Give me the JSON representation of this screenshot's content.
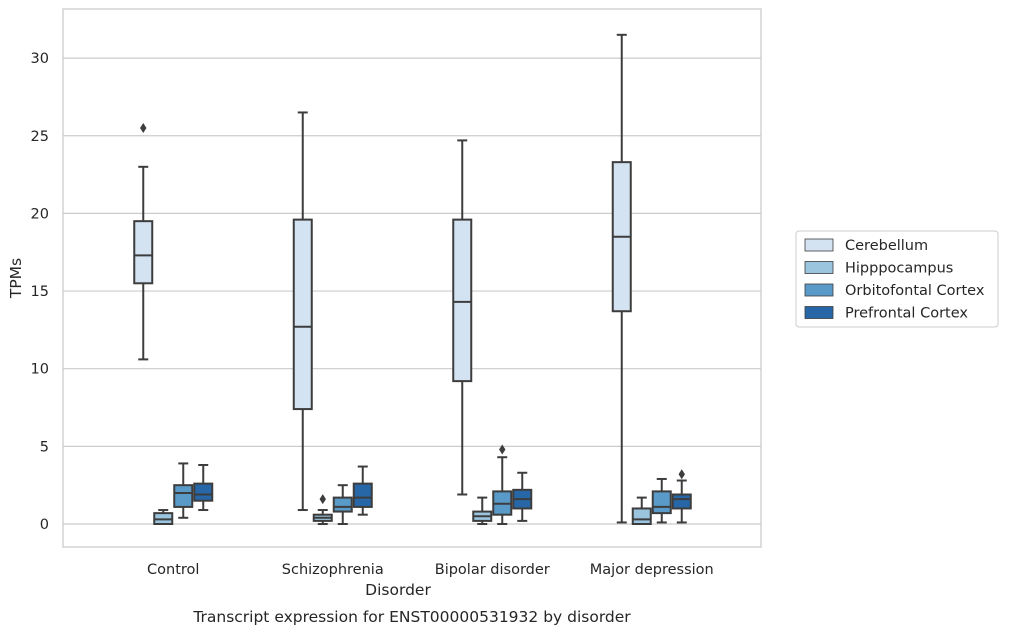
{
  "chart_data": {
    "type": "box",
    "caption": "Transcript expression for ENST00000531932 by disorder",
    "xlabel": "Disorder",
    "ylabel": "TPMs",
    "ylim": [
      -1.5,
      33
    ],
    "yticks": [
      0,
      5,
      10,
      15,
      20,
      25,
      30
    ],
    "grid": "horizontal",
    "legend_position": "right",
    "categories": [
      "Control",
      "Schizophrenia",
      "Bipolar disorder",
      "Major depression"
    ],
    "series": [
      {
        "name": "Cerebellum",
        "color": "#d3e3f2",
        "boxes": [
          {
            "whislo": 10.6,
            "q1": 15.5,
            "med": 17.3,
            "q3": 19.5,
            "whishi": 23.0,
            "fliers": [
              25.5
            ]
          },
          {
            "whislo": 0.9,
            "q1": 7.4,
            "med": 12.7,
            "q3": 19.6,
            "whishi": 26.5,
            "fliers": []
          },
          {
            "whislo": 1.9,
            "q1": 9.2,
            "med": 14.3,
            "q3": 19.6,
            "whishi": 24.7,
            "fliers": []
          },
          {
            "whislo": 0.1,
            "q1": 13.7,
            "med": 18.5,
            "q3": 23.3,
            "whishi": 31.5,
            "fliers": []
          }
        ]
      },
      {
        "name": "Hipppocampus",
        "color": "#9bc4de",
        "boxes": [
          {
            "whislo": 0.0,
            "q1": 0.0,
            "med": 0.3,
            "q3": 0.7,
            "whishi": 0.9,
            "fliers": []
          },
          {
            "whislo": 0.0,
            "q1": 0.2,
            "med": 0.4,
            "q3": 0.6,
            "whishi": 0.9,
            "fliers": [
              1.6
            ]
          },
          {
            "whislo": 0.0,
            "q1": 0.2,
            "med": 0.5,
            "q3": 0.8,
            "whishi": 1.7,
            "fliers": []
          },
          {
            "whislo": 0.0,
            "q1": 0.0,
            "med": 0.3,
            "q3": 1.0,
            "whishi": 1.7,
            "fliers": []
          }
        ]
      },
      {
        "name": "Orbitofontal Cortex",
        "color": "#5a9ac8",
        "boxes": [
          {
            "whislo": 0.4,
            "q1": 1.1,
            "med": 2.0,
            "q3": 2.5,
            "whishi": 3.9,
            "fliers": []
          },
          {
            "whislo": 0.0,
            "q1": 0.8,
            "med": 1.1,
            "q3": 1.7,
            "whishi": 2.5,
            "fliers": []
          },
          {
            "whislo": 0.0,
            "q1": 0.6,
            "med": 1.3,
            "q3": 2.1,
            "whishi": 4.3,
            "fliers": [
              4.8
            ]
          },
          {
            "whislo": 0.1,
            "q1": 0.7,
            "med": 1.1,
            "q3": 2.1,
            "whishi": 2.9,
            "fliers": []
          }
        ]
      },
      {
        "name": "Prefrontal Cortex",
        "color": "#2767a8",
        "boxes": [
          {
            "whislo": 0.9,
            "q1": 1.5,
            "med": 1.9,
            "q3": 2.6,
            "whishi": 3.8,
            "fliers": []
          },
          {
            "whislo": 0.6,
            "q1": 1.1,
            "med": 1.7,
            "q3": 2.6,
            "whishi": 3.7,
            "fliers": []
          },
          {
            "whislo": 0.2,
            "q1": 1.0,
            "med": 1.6,
            "q3": 2.2,
            "whishi": 3.3,
            "fliers": []
          },
          {
            "whislo": 0.1,
            "q1": 1.0,
            "med": 1.6,
            "q3": 1.9,
            "whishi": 2.8,
            "fliers": [
              3.2
            ]
          }
        ]
      }
    ]
  }
}
